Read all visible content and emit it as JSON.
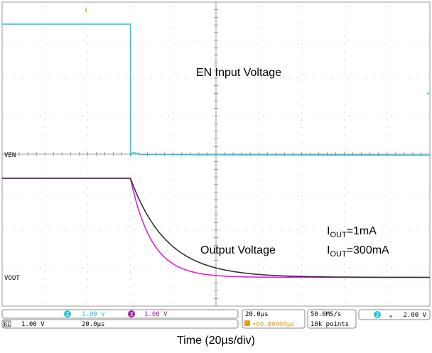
{
  "chart_data": {
    "type": "line",
    "xlabel": "Time (20µs/div)",
    "x_unit": "µs",
    "xlim": [
      -60,
      140
    ],
    "x_grid_divisions": 10,
    "y_grid_divisions": 8,
    "grid": true,
    "series": [
      {
        "id": "en",
        "color": "#22c4dc",
        "x": [
          -60,
          -0.5,
          0,
          0.5,
          1.5,
          4,
          140
        ],
        "y": [
          "high",
          "high",
          "fall",
          "low",
          "low",
          "low",
          "low"
        ]
      },
      {
        "id": "vout_1ma",
        "color": "#333333",
        "tau_us": 17
      },
      {
        "id": "vout_300ma",
        "color": "#e020e0",
        "tau_us": 10
      }
    ],
    "annotations": {
      "en_label": "EN Input Voltage",
      "out_label": "Output Voltage",
      "iout_1ma_main": "I",
      "iout_1ma_sub": "OUT",
      "iout_1ma_tail": "=1mA",
      "iout_300ma_main": "I",
      "iout_300ma_sub": "OUT",
      "iout_300ma_tail": "=300mA",
      "ven_marker": "VEN",
      "vout_marker": "VOUT"
    },
    "status": {
      "ch2_num": "2",
      "ch2_scale": "1.00 V",
      "ch3_num": "3",
      "ch3_scale": "1.00 V",
      "ref_tag": "R1",
      "ref_scale": "1.00 V",
      "ref_time": "20.0µs",
      "timebase": "20.0µs",
      "trigger_pos": "▾60.00000µs",
      "sample_rate": "50.0MS/s",
      "record_len": "10k points",
      "trig_ch": "2",
      "trig_slope": "⌄",
      "trig_level": "2.00 V"
    },
    "colors": {
      "ch2": "#22c4dc",
      "ch3": "#a020a0",
      "trigger": "#e0a020"
    }
  }
}
